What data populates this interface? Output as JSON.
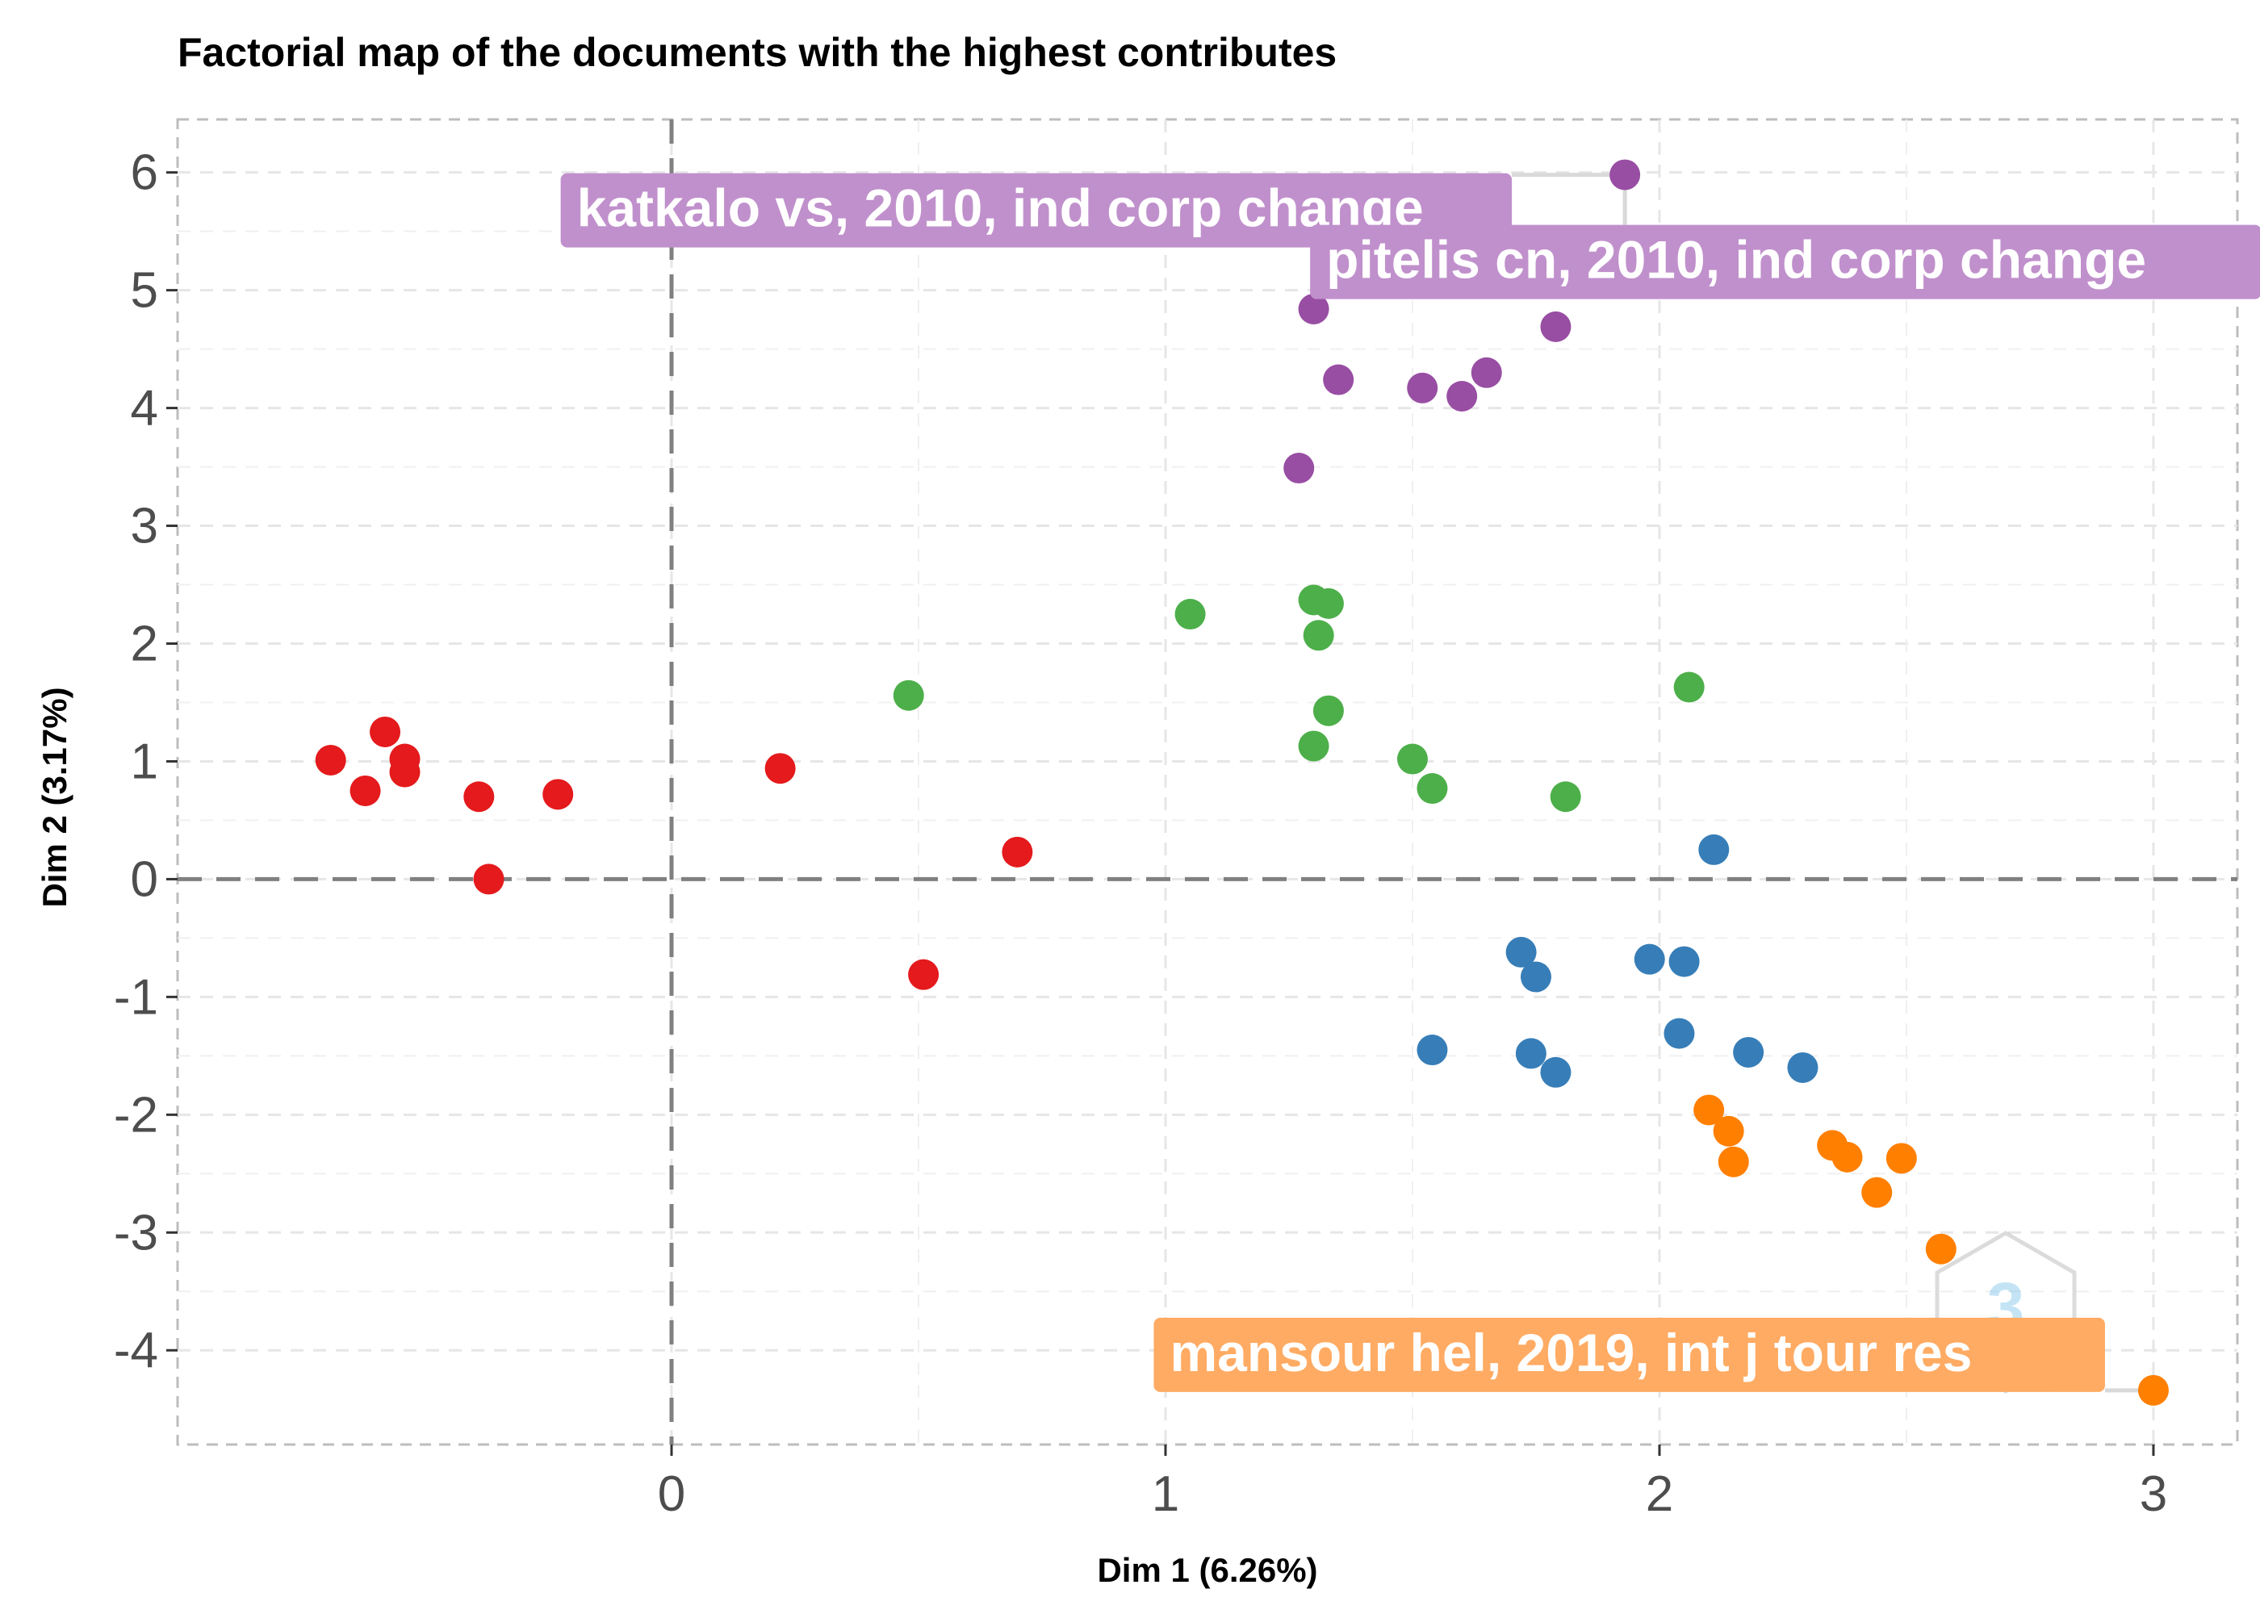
{
  "chart_data": {
    "type": "scatter",
    "title": "Factorial map of the documents with the highest contributes",
    "xlabel": "Dim 1 (6.26%)",
    "ylabel": "Dim 2 (3.17%)",
    "xlim": [
      -1.0,
      3.17
    ],
    "ylim": [
      -4.8,
      6.45
    ],
    "xticks": [
      0,
      1,
      2,
      3
    ],
    "yticks": [
      -4,
      -3,
      -2,
      -1,
      0,
      1,
      2,
      3,
      4,
      5,
      6
    ],
    "grid": true,
    "reference_lines": {
      "x": 0,
      "y": 0
    },
    "series": [
      {
        "color": "#e41a1c",
        "points": [
          {
            "x": -0.69,
            "y": 1.01
          },
          {
            "x": -0.62,
            "y": 0.75
          },
          {
            "x": -0.58,
            "y": 1.25
          },
          {
            "x": -0.54,
            "y": 1.02
          },
          {
            "x": -0.54,
            "y": 0.91
          },
          {
            "x": -0.39,
            "y": 0.7
          },
          {
            "x": -0.37,
            "y": 0.0
          },
          {
            "x": -0.23,
            "y": 0.72
          },
          {
            "x": 0.22,
            "y": 0.94
          },
          {
            "x": 0.7,
            "y": 0.23
          },
          {
            "x": 0.51,
            "y": -0.81
          }
        ]
      },
      {
        "color": "#4daf4a",
        "points": [
          {
            "x": 0.48,
            "y": 1.56
          },
          {
            "x": 1.05,
            "y": 2.25
          },
          {
            "x": 1.3,
            "y": 2.37
          },
          {
            "x": 1.33,
            "y": 2.34
          },
          {
            "x": 1.31,
            "y": 2.07
          },
          {
            "x": 1.33,
            "y": 1.43
          },
          {
            "x": 1.3,
            "y": 1.13
          },
          {
            "x": 1.5,
            "y": 1.02
          },
          {
            "x": 1.54,
            "y": 0.77
          },
          {
            "x": 1.81,
            "y": 0.7
          },
          {
            "x": 2.06,
            "y": 1.63
          }
        ]
      },
      {
        "color": "#984ea3",
        "points": [
          {
            "x": 1.27,
            "y": 3.49
          },
          {
            "x": 1.3,
            "y": 4.84
          },
          {
            "x": 1.35,
            "y": 4.24
          },
          {
            "x": 1.52,
            "y": 4.17
          },
          {
            "x": 1.6,
            "y": 4.1
          },
          {
            "x": 1.65,
            "y": 4.3
          },
          {
            "x": 1.79,
            "y": 4.69
          },
          {
            "x": 1.93,
            "y": 5.98
          }
        ]
      },
      {
        "color": "#377eb8",
        "points": [
          {
            "x": 2.11,
            "y": 0.25
          },
          {
            "x": 1.72,
            "y": -0.62
          },
          {
            "x": 1.75,
            "y": -0.83
          },
          {
            "x": 1.98,
            "y": -0.68
          },
          {
            "x": 2.05,
            "y": -0.7
          },
          {
            "x": 1.54,
            "y": -1.45
          },
          {
            "x": 1.74,
            "y": -1.48
          },
          {
            "x": 1.79,
            "y": -1.64
          },
          {
            "x": 2.04,
            "y": -1.31
          },
          {
            "x": 2.18,
            "y": -1.47
          },
          {
            "x": 2.29,
            "y": -1.6
          }
        ]
      },
      {
        "color": "#ff7f00",
        "points": [
          {
            "x": 2.1,
            "y": -1.96
          },
          {
            "x": 2.14,
            "y": -2.14
          },
          {
            "x": 2.15,
            "y": -2.4
          },
          {
            "x": 2.35,
            "y": -2.26
          },
          {
            "x": 2.38,
            "y": -2.36
          },
          {
            "x": 2.44,
            "y": -2.66
          },
          {
            "x": 2.49,
            "y": -2.37
          },
          {
            "x": 2.57,
            "y": -3.14
          },
          {
            "x": 3.0,
            "y": -4.34
          }
        ]
      }
    ],
    "annotations": [
      {
        "text": "katkalo vs, 2010, ind corp change",
        "x": 1.93,
        "y": 5.98,
        "color": "#c090cc",
        "placement": "left"
      },
      {
        "text": "pitelis cn, 2010, ind corp change",
        "x": 1.93,
        "y": 5.98,
        "color": "#c090cc",
        "placement": "below-right"
      },
      {
        "text": "mansour hel, 2019, int j tour res",
        "x": 3.0,
        "y": -4.34,
        "color": "#ffab63",
        "placement": "left"
      }
    ]
  }
}
